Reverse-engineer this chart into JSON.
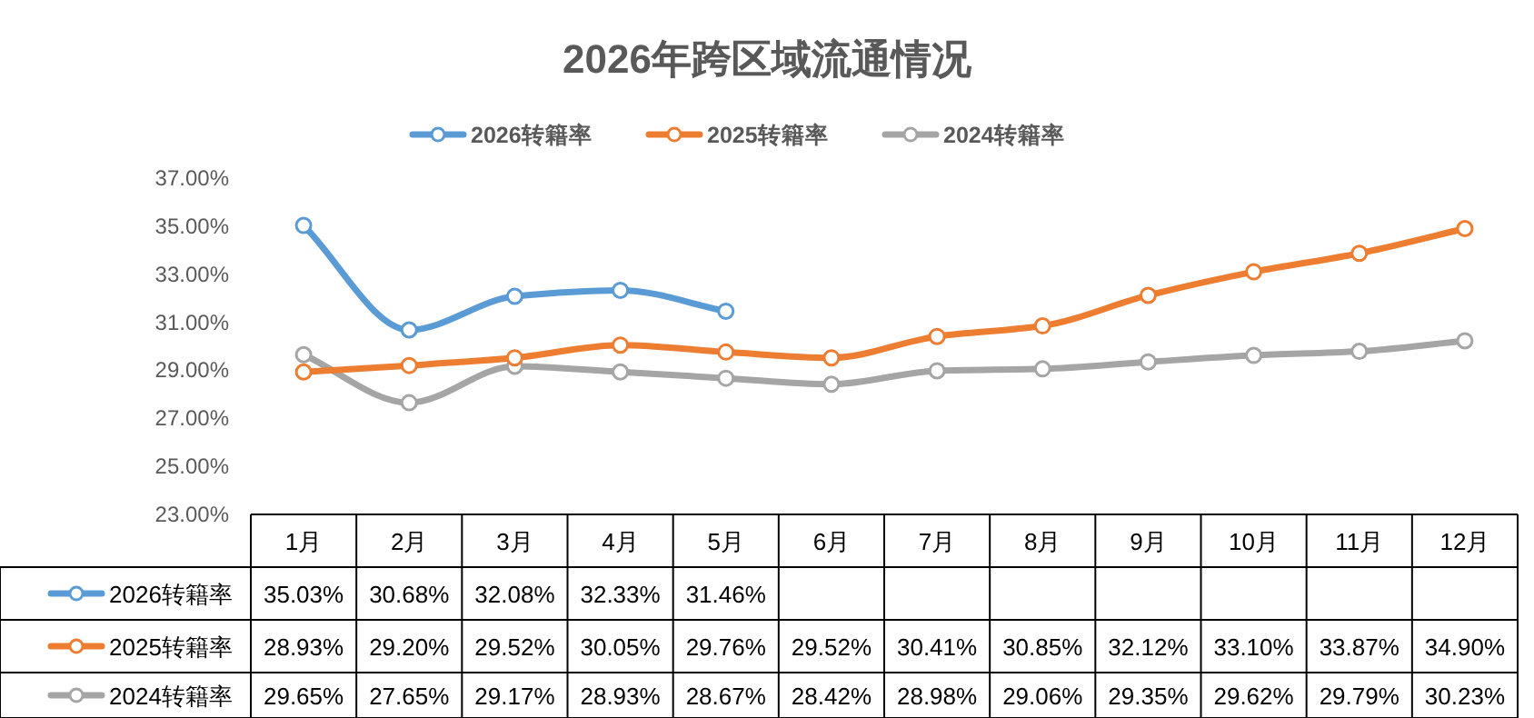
{
  "chart_data": {
    "type": "line",
    "title": "2026年跨区域流通情况",
    "categories": [
      "1月",
      "2月",
      "3月",
      "4月",
      "5月",
      "6月",
      "7月",
      "8月",
      "9月",
      "10月",
      "11月",
      "12月"
    ],
    "series": [
      {
        "name": "2026转籍率",
        "color": "#5b9bd5",
        "values": [
          35.03,
          30.68,
          32.08,
          32.33,
          31.46,
          null,
          null,
          null,
          null,
          null,
          null,
          null
        ],
        "value_labels": [
          "35.03%",
          "30.68%",
          "32.08%",
          "32.33%",
          "31.46%",
          null,
          null,
          null,
          null,
          null,
          null,
          null
        ]
      },
      {
        "name": "2025转籍率",
        "color": "#ed7d31",
        "values": [
          28.93,
          29.2,
          29.52,
          30.05,
          29.76,
          29.52,
          30.41,
          30.85,
          32.12,
          33.1,
          33.87,
          34.9
        ],
        "value_labels": [
          "28.93%",
          "29.20%",
          "29.52%",
          "30.05%",
          "29.76%",
          "29.52%",
          "30.41%",
          "30.85%",
          "32.12%",
          "33.10%",
          "33.87%",
          "34.90%"
        ]
      },
      {
        "name": "2024转籍率",
        "color": "#a5a5a5",
        "values": [
          29.65,
          27.65,
          29.17,
          28.93,
          28.67,
          28.42,
          28.98,
          29.06,
          29.35,
          29.62,
          29.79,
          30.23
        ],
        "value_labels": [
          "29.65%",
          "27.65%",
          "29.17%",
          "28.93%",
          "28.67%",
          "28.42%",
          "28.98%",
          "29.06%",
          "29.35%",
          "29.62%",
          "29.79%",
          "30.23%"
        ]
      }
    ],
    "ylim": [
      23,
      37
    ],
    "yticks": [
      {
        "value": 23,
        "label": "23.00%"
      },
      {
        "value": 25,
        "label": "25.00%"
      },
      {
        "value": 27,
        "label": "27.00%"
      },
      {
        "value": 29,
        "label": "29.00%"
      },
      {
        "value": 31,
        "label": "31.00%"
      },
      {
        "value": 33,
        "label": "33.00%"
      },
      {
        "value": 35,
        "label": "35.00%"
      },
      {
        "value": 37,
        "label": "37.00%"
      }
    ],
    "legend": "top",
    "marker": "circle"
  }
}
